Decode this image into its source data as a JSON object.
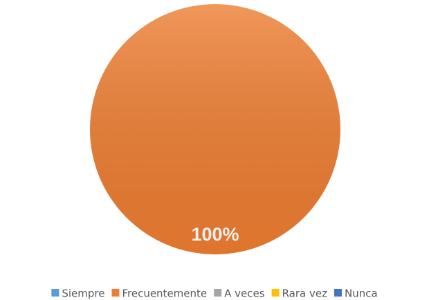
{
  "chart_data": {
    "type": "pie",
    "categories": [
      "Siempre",
      "Frecuentemente",
      "A veces",
      "Rara vez",
      "Nunca"
    ],
    "values": [
      0,
      100,
      0,
      0,
      0
    ],
    "value_labels": [
      null,
      "100%",
      null,
      null,
      null
    ],
    "colors": [
      "#5b9bd5",
      "#ed7d31",
      "#a5a5a5",
      "#ffc000",
      "#4472c4"
    ],
    "legend": "bottom"
  }
}
